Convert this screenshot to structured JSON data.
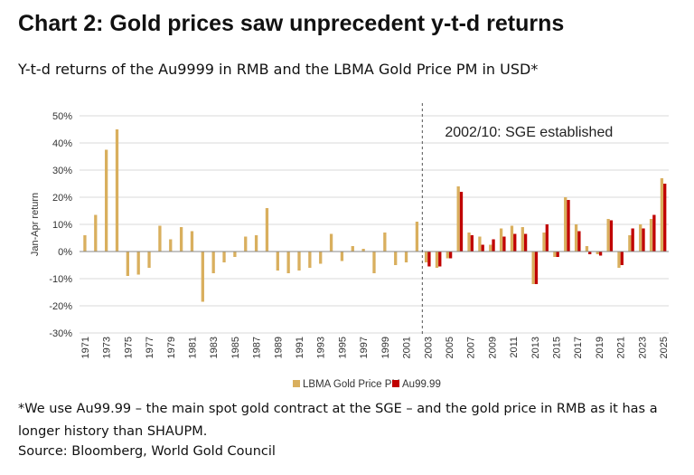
{
  "header": {
    "title": "Chart 2: Gold prices saw unprecedent y-t-d returns",
    "subtitle": "Y-t-d returns of the Au9999 in RMB and the LBMA Gold Price PM in USD*"
  },
  "footnote": "*We use Au99.99 – the main spot gold contract at the SGE – and the gold price in RMB as it has a longer history than SHAUPM.",
  "source": "Source: Bloomberg, World Gold Council",
  "colors": {
    "lbma": "#D9AF5E",
    "au": "#C00000",
    "grid": "#d9d9d9",
    "axis": "#888888"
  },
  "chart_data": {
    "type": "bar",
    "ylabel": "Jan-Apr return",
    "ylim": [
      -30,
      50
    ],
    "yticks": [
      -30,
      -20,
      -10,
      0,
      10,
      20,
      30,
      40,
      50
    ],
    "ytick_labels": [
      "-30%",
      "-20%",
      "-10%",
      "0%",
      "10%",
      "20%",
      "30%",
      "40%",
      "50%"
    ],
    "grid": "horizontal",
    "legend_position": "bottom",
    "annotation": {
      "text": "2002/10: SGE established",
      "between": [
        2002,
        2003
      ]
    },
    "categories": [
      1971,
      1972,
      1973,
      1974,
      1975,
      1976,
      1977,
      1978,
      1979,
      1980,
      1981,
      1982,
      1983,
      1984,
      1985,
      1986,
      1987,
      1988,
      1989,
      1990,
      1991,
      1992,
      1993,
      1994,
      1995,
      1996,
      1997,
      1998,
      1999,
      2000,
      2001,
      2002,
      2003,
      2004,
      2005,
      2006,
      2007,
      2008,
      2009,
      2010,
      2011,
      2012,
      2013,
      2014,
      2015,
      2016,
      2017,
      2018,
      2019,
      2020,
      2021,
      2022,
      2023,
      2024,
      2025
    ],
    "xtick_labels": [
      "1971",
      "1973",
      "1975",
      "1977",
      "1979",
      "1981",
      "1983",
      "1985",
      "1987",
      "1989",
      "1991",
      "1993",
      "1995",
      "1997",
      "1999",
      "2001",
      "2003",
      "2005",
      "2007",
      "2009",
      "2011",
      "2013",
      "2015",
      "2017",
      "2019",
      "2021",
      "2023",
      "2025"
    ],
    "series": [
      {
        "name": "LBMA Gold Price PM",
        "values": [
          6,
          13.5,
          37.5,
          45,
          -9,
          -8.5,
          -6,
          9.5,
          4.5,
          9,
          7.5,
          -18.5,
          -8,
          -4,
          -2,
          5.5,
          6,
          16,
          -7,
          -8,
          -7,
          -6,
          -4.5,
          6.5,
          -3.5,
          2,
          1,
          -8,
          7,
          -5,
          -4,
          11,
          -4,
          -6,
          -2.5,
          24,
          7,
          5.5,
          2.5,
          8.5,
          9.5,
          9,
          -12,
          7,
          -2,
          20,
          10,
          2,
          -1,
          12,
          -6,
          6,
          10,
          12,
          27
        ]
      },
      {
        "name": "Au99.99",
        "values": [
          null,
          null,
          null,
          null,
          null,
          null,
          null,
          null,
          null,
          null,
          null,
          null,
          null,
          null,
          null,
          null,
          null,
          null,
          null,
          null,
          null,
          null,
          null,
          null,
          null,
          null,
          null,
          null,
          null,
          null,
          null,
          null,
          -5.5,
          -5.5,
          -2.5,
          22,
          6,
          2.5,
          4.5,
          5.5,
          6.5,
          6.5,
          -12,
          10,
          -2,
          19,
          7.5,
          -1,
          -1.5,
          11.5,
          -5,
          8.5,
          8.5,
          13.5,
          25
        ]
      }
    ]
  }
}
